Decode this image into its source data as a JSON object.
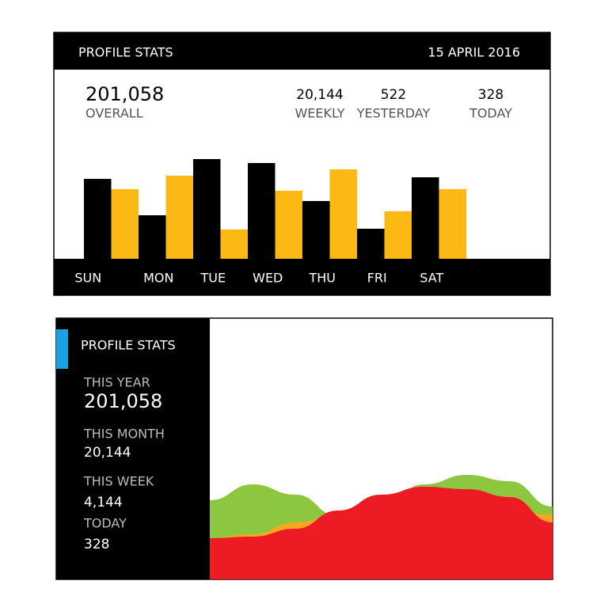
{
  "chart_data": [
    {
      "type": "bar",
      "title": "PROFILE STATS",
      "date": "15 APRIL 2016",
      "stats": [
        {
          "value": "201,058",
          "label": "OVERALL"
        },
        {
          "value": "20,144",
          "label": "WEEKLY"
        },
        {
          "value": "522",
          "label": "YESTERDAY"
        },
        {
          "value": "328",
          "label": "TODAY"
        }
      ],
      "categories": [
        "SUN",
        "MON",
        "TUE",
        "WED",
        "THU",
        "FRI",
        "SAT"
      ],
      "series": [
        {
          "color": "#000000",
          "values": [
            101,
            55,
            126,
            121,
            73,
            38,
            103
          ]
        },
        {
          "color": "#fdb913",
          "values": [
            88,
            105,
            37,
            86,
            113,
            60,
            88
          ]
        }
      ],
      "ylim": [
        0,
        140
      ]
    },
    {
      "type": "area",
      "title": "PROFILE STATS",
      "stats": [
        {
          "label": "THIS YEAR",
          "value": "201,058"
        },
        {
          "label": "THIS MONTH",
          "value": "20,144"
        },
        {
          "label": "THIS WEEK",
          "value": "4,144"
        },
        {
          "label": "TODAY",
          "value": "328"
        }
      ],
      "series": [
        {
          "color": "#8dc63f",
          "values": [
            100,
            120,
            107,
            80,
            92,
            120,
            132,
            124,
            92
          ]
        },
        {
          "color": "#f7a823",
          "values": [
            52,
            57,
            72,
            82,
            90,
            95,
            90,
            85,
            82
          ]
        },
        {
          "color": "#ed1c24",
          "values": [
            52,
            54,
            64,
            87,
            107,
            117,
            114,
            104,
            72
          ]
        }
      ],
      "ylim": [
        0,
        330
      ]
    }
  ]
}
